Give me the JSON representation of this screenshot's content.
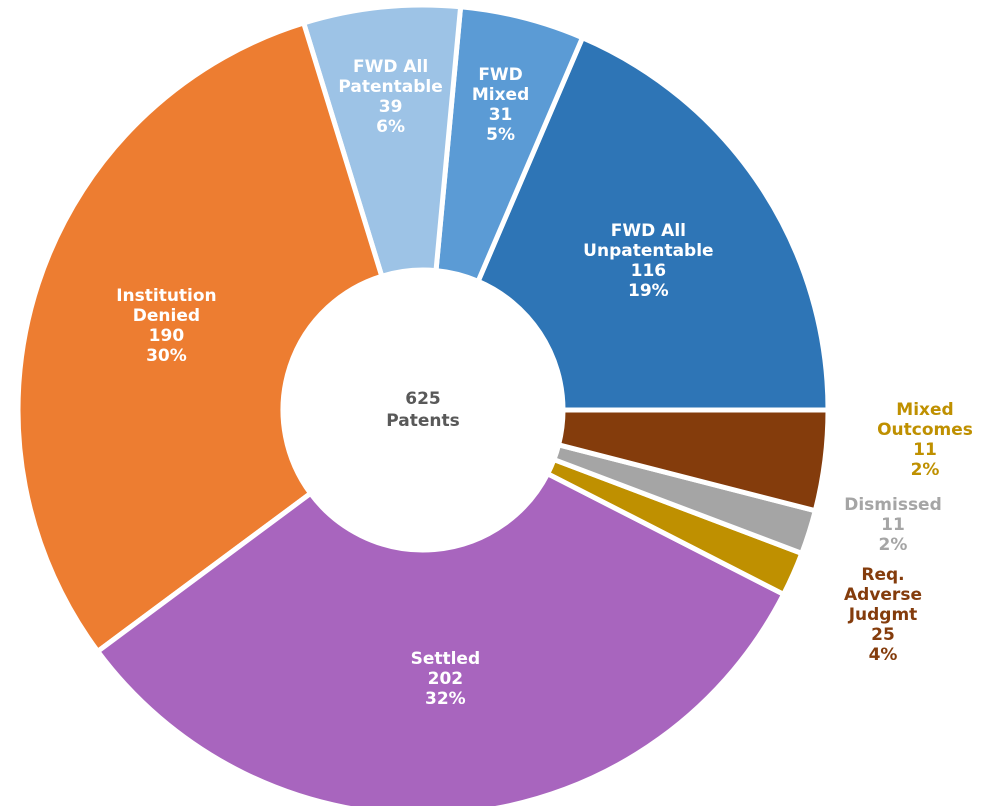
{
  "chart_data": {
    "type": "donut",
    "categories": [
      "FWD All\nUnpatentable",
      "FWD\nMixed",
      "FWD All\nPatentable",
      "Institution\nDenied",
      "Settled",
      "Mixed Outcomes",
      "Dismissed",
      "Req. Adverse\nJudgmt"
    ],
    "values": [
      116,
      31,
      39,
      190,
      202,
      11,
      11,
      25
    ],
    "percent_labels": [
      "19%",
      "5%",
      "6%",
      "30%",
      "32%",
      "2%",
      "2%",
      "4%"
    ],
    "colors": [
      "#2e75b6",
      "#5b9bd5",
      "#9dc3e6",
      "#ed7d31",
      "#a865be",
      "#bf9000",
      "#a5a5a5",
      "#843c0c"
    ],
    "total": 625,
    "total_label": "Patents"
  }
}
